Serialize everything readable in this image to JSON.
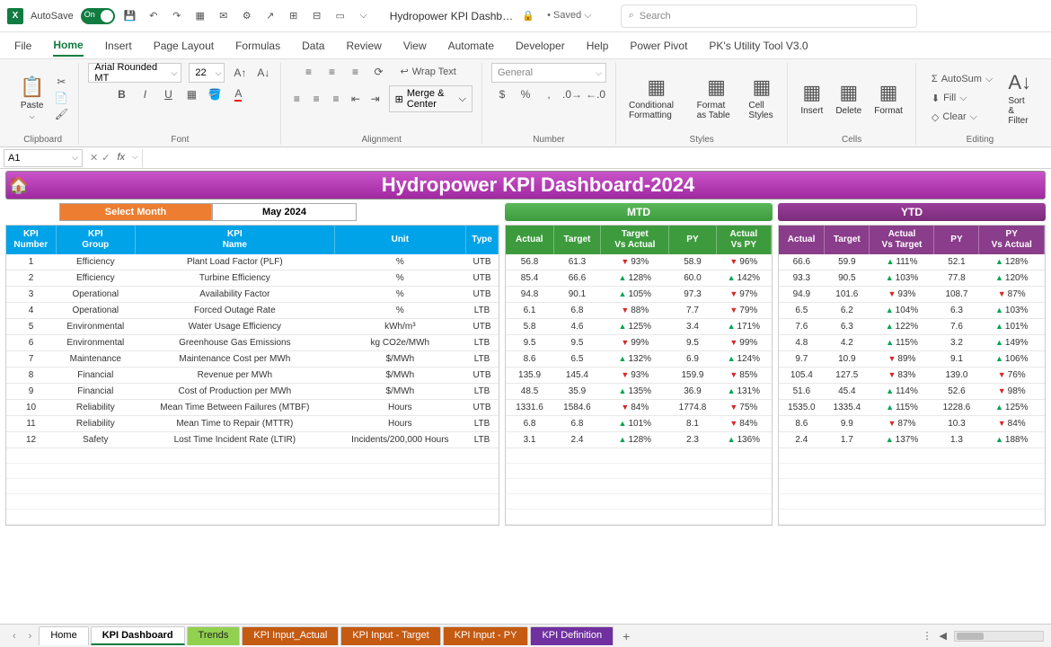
{
  "titlebar": {
    "autosave": "AutoSave",
    "on": "On",
    "docTitle": "Hydropower KPI Dashb…",
    "saved": "• Saved",
    "searchPlaceholder": "Search"
  },
  "tabs": [
    "File",
    "Home",
    "Insert",
    "Page Layout",
    "Formulas",
    "Data",
    "Review",
    "View",
    "Automate",
    "Developer",
    "Help",
    "Power Pivot",
    "PK's Utility Tool V3.0"
  ],
  "ribbon": {
    "clipboard": {
      "label": "Clipboard",
      "paste": "Paste"
    },
    "font": {
      "label": "Font",
      "name": "Arial Rounded MT",
      "size": "22"
    },
    "alignment": {
      "label": "Alignment",
      "wrap": "Wrap Text",
      "merge": "Merge & Center"
    },
    "number": {
      "label": "Number",
      "format": "General"
    },
    "styles": {
      "label": "Styles",
      "cond": "Conditional Formatting",
      "fmtTable": "Format as Table",
      "cellStyles": "Cell Styles"
    },
    "cells": {
      "label": "Cells",
      "insert": "Insert",
      "delete": "Delete",
      "format": "Format"
    },
    "editing": {
      "label": "Editing",
      "sum": "AutoSum",
      "fill": "Fill",
      "clear": "Clear",
      "sort": "Sort & Filter"
    }
  },
  "nameBox": "A1",
  "dashboard": {
    "title": "Hydropower KPI Dashboard-2024",
    "selMonthLabel": "Select Month",
    "selMonthVal": "May 2024",
    "mtd": "MTD",
    "ytd": "YTD",
    "leftHdr": [
      "KPI Number",
      "KPI Group",
      "KPI Name",
      "Unit",
      "Type"
    ],
    "midHdr": [
      "Actual",
      "Target",
      "Target Vs Actual",
      "PY",
      "Actual Vs PY"
    ],
    "rightHdr": [
      "Actual",
      "Target",
      "Actual Vs Target",
      "PY",
      "PY Vs Actual"
    ],
    "rows": [
      {
        "n": "1",
        "g": "Efficiency",
        "name": "Plant Load Factor (PLF)",
        "u": "%",
        "t": "UTB",
        "mA": "56.8",
        "mT": "61.3",
        "mTvA": "93%",
        "mTvAd": "dn",
        "mPY": "58.9",
        "mAvP": "96%",
        "mAvPd": "dn",
        "yA": "66.6",
        "yT": "59.9",
        "yAvT": "111%",
        "yAvTd": "up",
        "yPY": "52.1",
        "yPvA": "128%",
        "yPvAd": "up"
      },
      {
        "n": "2",
        "g": "Efficiency",
        "name": "Turbine Efficiency",
        "u": "%",
        "t": "UTB",
        "mA": "85.4",
        "mT": "66.6",
        "mTvA": "128%",
        "mTvAd": "up",
        "mPY": "60.0",
        "mAvP": "142%",
        "mAvPd": "up",
        "yA": "93.3",
        "yT": "90.5",
        "yAvT": "103%",
        "yAvTd": "up",
        "yPY": "77.8",
        "yPvA": "120%",
        "yPvAd": "up"
      },
      {
        "n": "3",
        "g": "Operational",
        "name": "Availability Factor",
        "u": "%",
        "t": "UTB",
        "mA": "94.8",
        "mT": "90.1",
        "mTvA": "105%",
        "mTvAd": "up",
        "mPY": "97.3",
        "mAvP": "97%",
        "mAvPd": "dn",
        "yA": "94.9",
        "yT": "101.6",
        "yAvT": "93%",
        "yAvTd": "dn",
        "yPY": "108.7",
        "yPvA": "87%",
        "yPvAd": "dn"
      },
      {
        "n": "4",
        "g": "Operational",
        "name": "Forced Outage Rate",
        "u": "%",
        "t": "LTB",
        "mA": "6.1",
        "mT": "6.8",
        "mTvA": "88%",
        "mTvAd": "dn",
        "mPY": "7.7",
        "mAvP": "79%",
        "mAvPd": "dn",
        "yA": "6.5",
        "yT": "6.2",
        "yAvT": "104%",
        "yAvTd": "up",
        "yPY": "6.3",
        "yPvA": "103%",
        "yPvAd": "up"
      },
      {
        "n": "5",
        "g": "Environmental",
        "name": "Water Usage Efficiency",
        "u": "kWh/m³",
        "t": "UTB",
        "mA": "5.8",
        "mT": "4.6",
        "mTvA": "125%",
        "mTvAd": "up",
        "mPY": "3.4",
        "mAvP": "171%",
        "mAvPd": "up",
        "yA": "7.6",
        "yT": "6.3",
        "yAvT": "122%",
        "yAvTd": "up",
        "yPY": "7.6",
        "yPvA": "101%",
        "yPvAd": "up"
      },
      {
        "n": "6",
        "g": "Environmental",
        "name": "Greenhouse Gas Emissions",
        "u": "kg CO2e/MWh",
        "t": "LTB",
        "mA": "9.5",
        "mT": "9.5",
        "mTvA": "99%",
        "mTvAd": "dn",
        "mPY": "9.5",
        "mAvP": "99%",
        "mAvPd": "dn",
        "yA": "4.8",
        "yT": "4.2",
        "yAvT": "115%",
        "yAvTd": "up",
        "yPY": "3.2",
        "yPvA": "149%",
        "yPvAd": "up"
      },
      {
        "n": "7",
        "g": "Maintenance",
        "name": "Maintenance Cost per MWh",
        "u": "$/MWh",
        "t": "LTB",
        "mA": "8.6",
        "mT": "6.5",
        "mTvA": "132%",
        "mTvAd": "up",
        "mPY": "6.9",
        "mAvP": "124%",
        "mAvPd": "up",
        "yA": "9.7",
        "yT": "10.9",
        "yAvT": "89%",
        "yAvTd": "dn",
        "yPY": "9.1",
        "yPvA": "106%",
        "yPvAd": "up"
      },
      {
        "n": "8",
        "g": "Financial",
        "name": "Revenue per MWh",
        "u": "$/MWh",
        "t": "UTB",
        "mA": "135.9",
        "mT": "145.4",
        "mTvA": "93%",
        "mTvAd": "dn",
        "mPY": "159.9",
        "mAvP": "85%",
        "mAvPd": "dn",
        "yA": "105.4",
        "yT": "127.5",
        "yAvT": "83%",
        "yAvTd": "dn",
        "yPY": "139.0",
        "yPvA": "76%",
        "yPvAd": "dn"
      },
      {
        "n": "9",
        "g": "Financial",
        "name": "Cost of Production per MWh",
        "u": "$/MWh",
        "t": "LTB",
        "mA": "48.5",
        "mT": "35.9",
        "mTvA": "135%",
        "mTvAd": "up",
        "mPY": "36.9",
        "mAvP": "131%",
        "mAvPd": "up",
        "yA": "51.6",
        "yT": "45.4",
        "yAvT": "114%",
        "yAvTd": "up",
        "yPY": "52.6",
        "yPvA": "98%",
        "yPvAd": "dn"
      },
      {
        "n": "10",
        "g": "Reliability",
        "name": "Mean Time Between Failures (MTBF)",
        "u": "Hours",
        "t": "UTB",
        "mA": "1331.6",
        "mT": "1584.6",
        "mTvA": "84%",
        "mTvAd": "dn",
        "mPY": "1774.8",
        "mAvP": "75%",
        "mAvPd": "dn",
        "yA": "1535.0",
        "yT": "1335.4",
        "yAvT": "115%",
        "yAvTd": "up",
        "yPY": "1228.6",
        "yPvA": "125%",
        "yPvAd": "up"
      },
      {
        "n": "11",
        "g": "Reliability",
        "name": "Mean Time to Repair (MTTR)",
        "u": "Hours",
        "t": "LTB",
        "mA": "6.8",
        "mT": "6.8",
        "mTvA": "101%",
        "mTvAd": "up",
        "mPY": "8.1",
        "mAvP": "84%",
        "mAvPd": "dn",
        "yA": "8.6",
        "yT": "9.9",
        "yAvT": "87%",
        "yAvTd": "dn",
        "yPY": "10.3",
        "yPvA": "84%",
        "yPvAd": "dn"
      },
      {
        "n": "12",
        "g": "Safety",
        "name": "Lost Time Incident Rate (LTIR)",
        "u": "Incidents/200,000 Hours",
        "t": "LTB",
        "mA": "3.1",
        "mT": "2.4",
        "mTvA": "128%",
        "mTvAd": "up",
        "mPY": "2.3",
        "mAvP": "136%",
        "mAvPd": "up",
        "yA": "2.4",
        "yT": "1.7",
        "yAvT": "137%",
        "yAvTd": "up",
        "yPY": "1.3",
        "yPvA": "188%",
        "yPvAd": "up"
      }
    ]
  },
  "sheets": [
    {
      "label": "Home",
      "cls": ""
    },
    {
      "label": "KPI Dashboard",
      "cls": "active"
    },
    {
      "label": "Trends",
      "cls": "green"
    },
    {
      "label": "KPI Input_Actual",
      "cls": "orange"
    },
    {
      "label": "KPI Input - Target",
      "cls": "orange"
    },
    {
      "label": "KPI Input - PY",
      "cls": "orange"
    },
    {
      "label": "KPI Definition",
      "cls": "purple"
    }
  ]
}
